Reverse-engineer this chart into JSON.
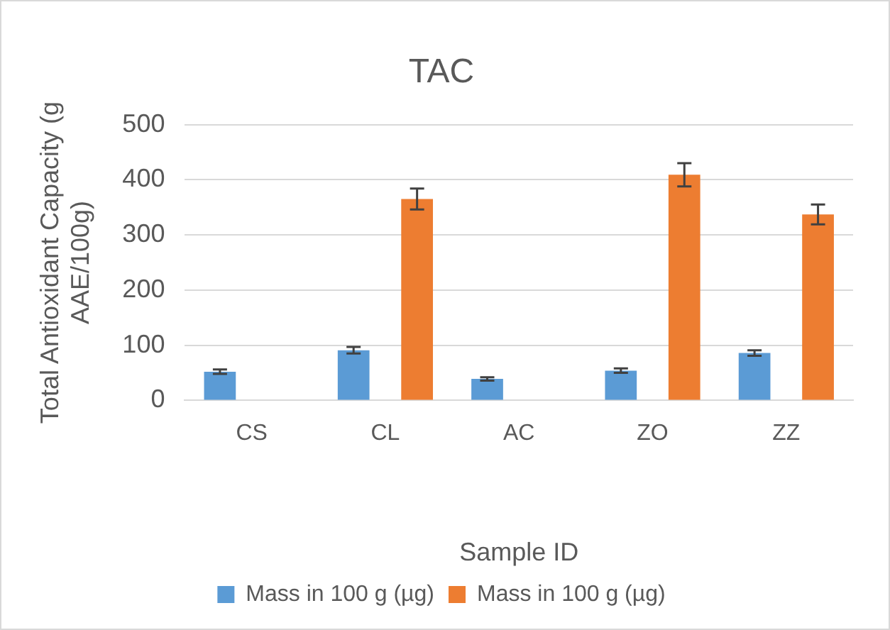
{
  "chart_data": {
    "type": "bar",
    "title": "TAC",
    "xlabel": "Sample ID",
    "ylabel": "Total Antioxidant Capacity (g AAE/100g)",
    "categories": [
      "CS",
      "CL",
      "AC",
      "ZO",
      "ZZ"
    ],
    "series": [
      {
        "name": "Mass in 100 g (µg)",
        "color": "#5b9bd5",
        "values": [
          52,
          91,
          39,
          54,
          86
        ],
        "errors": [
          4,
          6,
          3,
          4,
          5
        ]
      },
      {
        "name": "Mass in 100 g (µg)",
        "color": "#ed7d31",
        "values": [
          null,
          365,
          null,
          409,
          337
        ],
        "errors": [
          null,
          19,
          null,
          21,
          18
        ]
      }
    ],
    "ylim": [
      0,
      500
    ],
    "yticks": [
      0,
      100,
      200,
      300,
      400,
      500
    ],
    "grid": "y",
    "legend": "bottom"
  }
}
